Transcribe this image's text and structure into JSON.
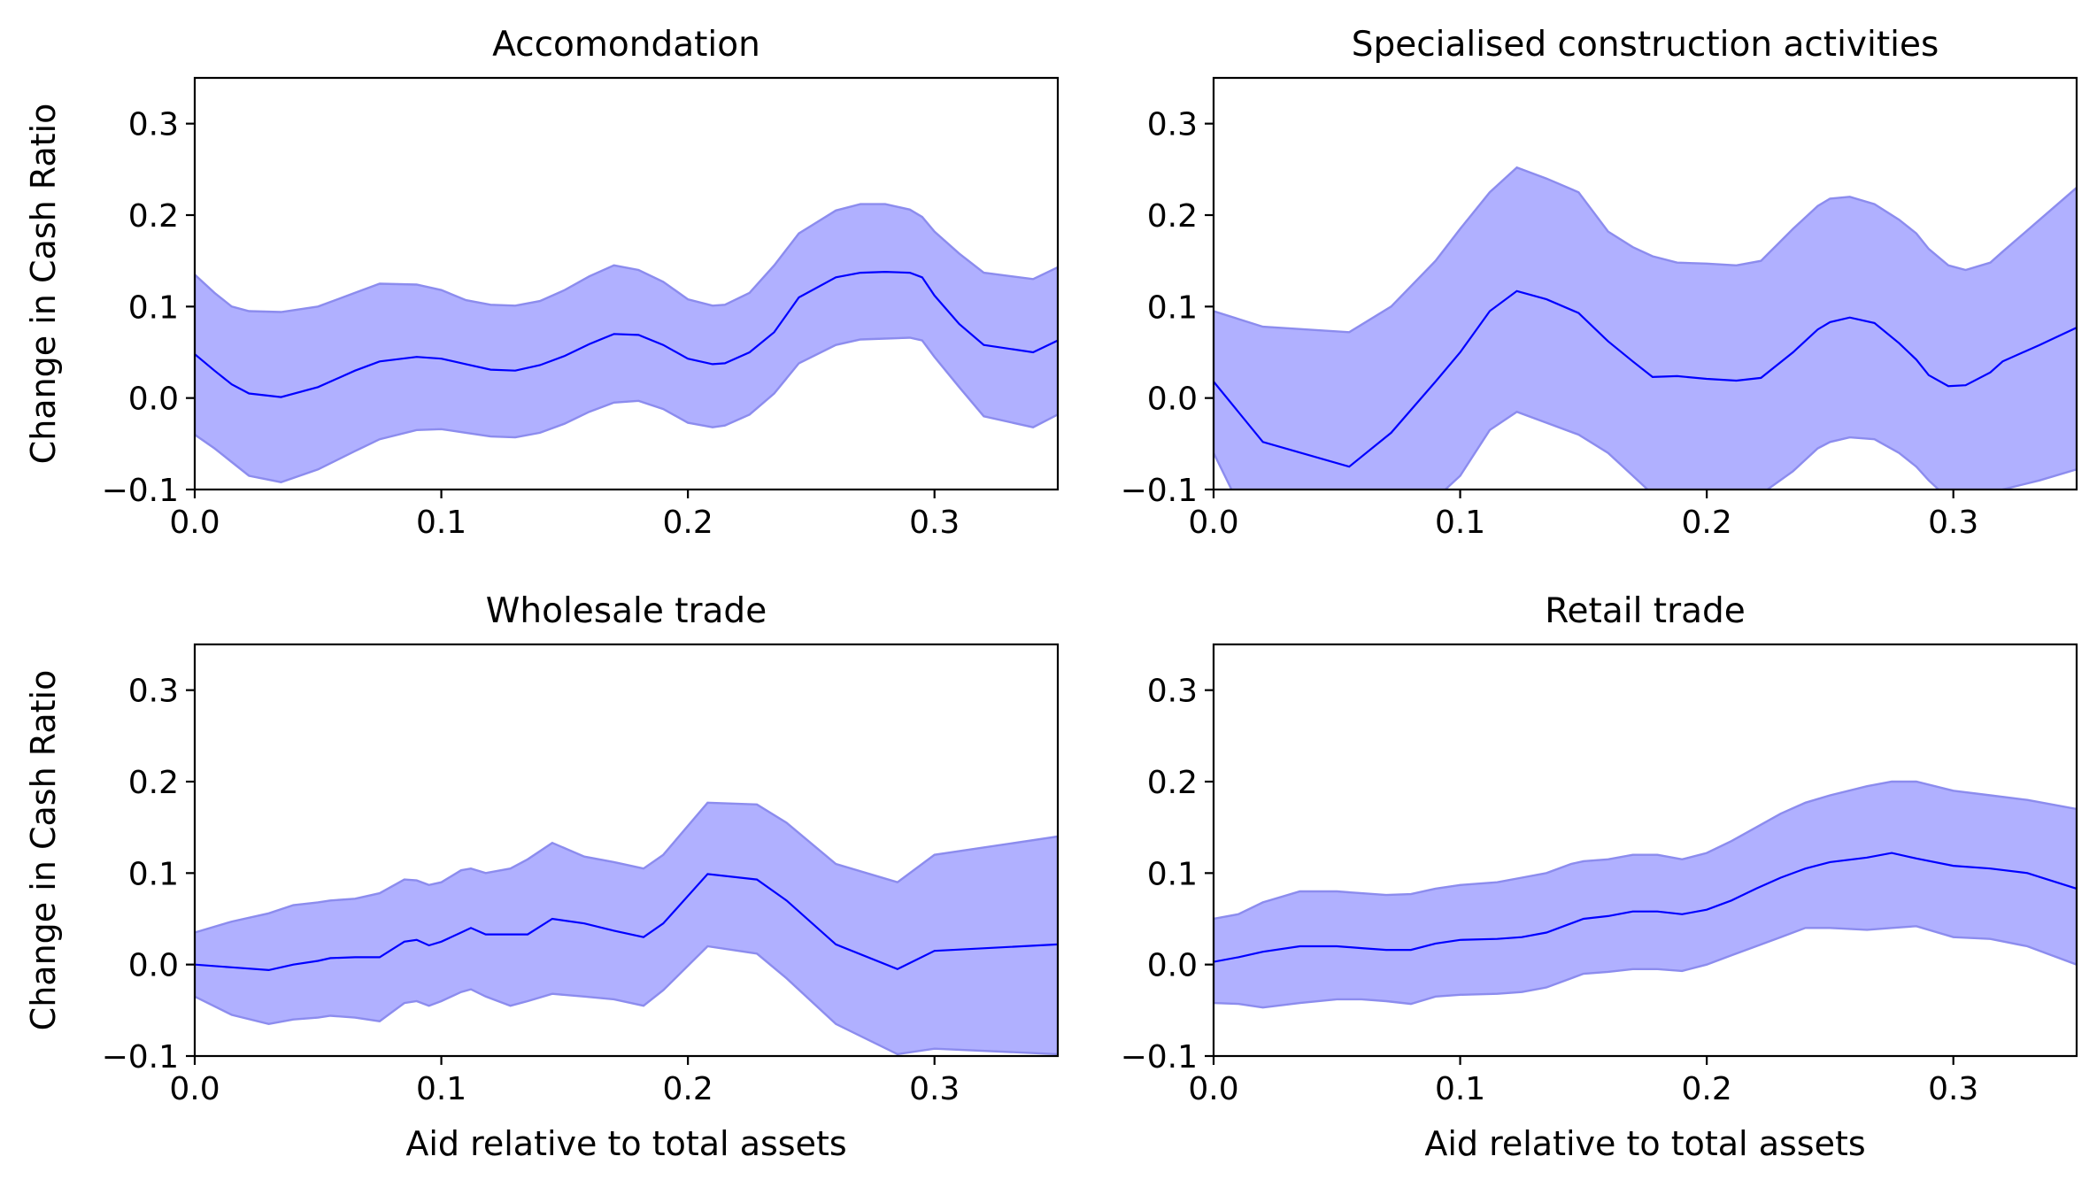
{
  "colors": {
    "line": "#0000ff",
    "band_fill": "#b0b0ff",
    "band_edge": "#8c8cee"
  },
  "chart_data": [
    {
      "type": "line",
      "title": "Accomondation",
      "xlabel": "",
      "ylabel": "Change in Cash Ratio",
      "xlim": [
        0.0,
        0.35
      ],
      "ylim": [
        -0.1,
        0.35
      ],
      "xticks": [
        "0.0",
        "0.1",
        "0.2",
        "0.3"
      ],
      "yticks": [
        "−0.1",
        "0.0",
        "0.1",
        "0.2",
        "0.3"
      ],
      "grid": false,
      "x": [
        0.0,
        0.008,
        0.015,
        0.022,
        0.035,
        0.05,
        0.065,
        0.075,
        0.09,
        0.1,
        0.11,
        0.12,
        0.13,
        0.14,
        0.15,
        0.16,
        0.17,
        0.18,
        0.19,
        0.2,
        0.21,
        0.215,
        0.225,
        0.235,
        0.245,
        0.26,
        0.27,
        0.28,
        0.29,
        0.295,
        0.3,
        0.31,
        0.32,
        0.34,
        0.35
      ],
      "y": [
        0.048,
        0.03,
        0.015,
        0.005,
        0.001,
        0.012,
        0.03,
        0.04,
        0.045,
        0.043,
        0.037,
        0.031,
        0.03,
        0.036,
        0.046,
        0.059,
        0.07,
        0.069,
        0.058,
        0.043,
        0.037,
        0.038,
        0.05,
        0.072,
        0.11,
        0.132,
        0.137,
        0.138,
        0.137,
        0.132,
        0.112,
        0.081,
        0.058,
        0.05,
        0.063
      ],
      "upper": [
        0.135,
        0.115,
        0.1,
        0.095,
        0.094,
        0.1,
        0.115,
        0.125,
        0.124,
        0.118,
        0.107,
        0.102,
        0.101,
        0.106,
        0.118,
        0.133,
        0.145,
        0.14,
        0.127,
        0.108,
        0.101,
        0.102,
        0.115,
        0.145,
        0.18,
        0.205,
        0.212,
        0.212,
        0.206,
        0.198,
        0.182,
        0.158,
        0.137,
        0.13,
        0.143
      ],
      "lower": [
        -0.04,
        -0.055,
        -0.07,
        -0.085,
        -0.092,
        -0.078,
        -0.058,
        -0.045,
        -0.035,
        -0.034,
        -0.038,
        -0.042,
        -0.043,
        -0.038,
        -0.028,
        -0.015,
        -0.005,
        -0.003,
        -0.012,
        -0.027,
        -0.032,
        -0.03,
        -0.018,
        0.005,
        0.038,
        0.058,
        0.064,
        0.065,
        0.066,
        0.063,
        0.045,
        0.012,
        -0.02,
        -0.032,
        -0.018
      ]
    },
    {
      "type": "line",
      "title": "Specialised construction activities",
      "xlabel": "",
      "ylabel": "",
      "xlim": [
        0.0,
        0.35
      ],
      "ylim": [
        -0.1,
        0.35
      ],
      "xticks": [
        "0.0",
        "0.1",
        "0.2",
        "0.3"
      ],
      "yticks": [
        "−0.1",
        "0.0",
        "0.1",
        "0.2",
        "0.3"
      ],
      "grid": false,
      "x": [
        0.0,
        0.02,
        0.055,
        0.072,
        0.09,
        0.1,
        0.112,
        0.123,
        0.135,
        0.148,
        0.16,
        0.17,
        0.178,
        0.188,
        0.2,
        0.212,
        0.222,
        0.235,
        0.245,
        0.25,
        0.258,
        0.268,
        0.278,
        0.285,
        0.29,
        0.298,
        0.305,
        0.315,
        0.32,
        0.335,
        0.35
      ],
      "y": [
        0.018,
        -0.048,
        -0.075,
        -0.038,
        0.018,
        0.05,
        0.095,
        0.117,
        0.108,
        0.093,
        0.062,
        0.04,
        0.023,
        0.024,
        0.021,
        0.019,
        0.022,
        0.05,
        0.075,
        0.083,
        0.088,
        0.082,
        0.06,
        0.042,
        0.025,
        0.013,
        0.014,
        0.028,
        0.04,
        0.058,
        0.077
      ],
      "upper": [
        0.095,
        0.078,
        0.072,
        0.1,
        0.15,
        0.185,
        0.225,
        0.252,
        0.24,
        0.225,
        0.182,
        0.165,
        0.155,
        0.148,
        0.147,
        0.145,
        0.15,
        0.185,
        0.21,
        0.218,
        0.22,
        0.212,
        0.195,
        0.18,
        0.163,
        0.145,
        0.14,
        0.148,
        0.16,
        0.195,
        0.23
      ],
      "lower": [
        -0.06,
        -0.17,
        -0.22,
        -0.17,
        -0.11,
        -0.085,
        -0.035,
        -0.015,
        -0.027,
        -0.04,
        -0.06,
        -0.085,
        -0.105,
        -0.11,
        -0.11,
        -0.11,
        -0.105,
        -0.08,
        -0.055,
        -0.048,
        -0.043,
        -0.045,
        -0.06,
        -0.075,
        -0.09,
        -0.11,
        -0.12,
        -0.11,
        -0.1,
        -0.09,
        -0.078
      ]
    },
    {
      "type": "line",
      "title": "Wholesale trade",
      "xlabel": "Aid relative to total assets",
      "ylabel": "Change in Cash Ratio",
      "xlim": [
        0.0,
        0.35
      ],
      "ylim": [
        -0.1,
        0.35
      ],
      "xticks": [
        "0.0",
        "0.1",
        "0.2",
        "0.3"
      ],
      "yticks": [
        "−0.1",
        "0.0",
        "0.1",
        "0.2",
        "0.3"
      ],
      "grid": false,
      "x": [
        0.0,
        0.015,
        0.03,
        0.04,
        0.05,
        0.055,
        0.065,
        0.075,
        0.085,
        0.09,
        0.095,
        0.1,
        0.108,
        0.112,
        0.118,
        0.128,
        0.135,
        0.145,
        0.158,
        0.17,
        0.182,
        0.19,
        0.208,
        0.228,
        0.24,
        0.26,
        0.285,
        0.3,
        0.35
      ],
      "y": [
        0.0,
        -0.003,
        -0.006,
        0.0,
        0.004,
        0.007,
        0.008,
        0.008,
        0.025,
        0.027,
        0.021,
        0.025,
        0.035,
        0.04,
        0.033,
        0.033,
        0.033,
        0.05,
        0.045,
        0.037,
        0.03,
        0.045,
        0.099,
        0.093,
        0.07,
        0.022,
        -0.005,
        0.015,
        0.022
      ],
      "upper": [
        0.035,
        0.047,
        0.056,
        0.065,
        0.068,
        0.07,
        0.072,
        0.078,
        0.093,
        0.092,
        0.087,
        0.09,
        0.103,
        0.105,
        0.1,
        0.105,
        0.115,
        0.133,
        0.118,
        0.112,
        0.105,
        0.12,
        0.177,
        0.175,
        0.155,
        0.11,
        0.09,
        0.12,
        0.14
      ],
      "lower": [
        -0.035,
        -0.055,
        -0.065,
        -0.06,
        -0.058,
        -0.056,
        -0.058,
        -0.062,
        -0.042,
        -0.04,
        -0.045,
        -0.04,
        -0.03,
        -0.027,
        -0.035,
        -0.045,
        -0.04,
        -0.032,
        -0.035,
        -0.038,
        -0.045,
        -0.028,
        0.02,
        0.012,
        -0.015,
        -0.065,
        -0.098,
        -0.092,
        -0.098
      ]
    },
    {
      "type": "line",
      "title": "Retail trade",
      "xlabel": "Aid relative to total assets",
      "ylabel": "",
      "xlim": [
        0.0,
        0.35
      ],
      "ylim": [
        -0.1,
        0.35
      ],
      "xticks": [
        "0.0",
        "0.1",
        "0.2",
        "0.3"
      ],
      "yticks": [
        "−0.1",
        "0.0",
        "0.1",
        "0.2",
        "0.3"
      ],
      "grid": false,
      "x": [
        0.0,
        0.01,
        0.02,
        0.035,
        0.05,
        0.06,
        0.07,
        0.08,
        0.09,
        0.1,
        0.115,
        0.125,
        0.135,
        0.145,
        0.15,
        0.16,
        0.17,
        0.18,
        0.19,
        0.2,
        0.21,
        0.22,
        0.23,
        0.24,
        0.25,
        0.265,
        0.275,
        0.285,
        0.3,
        0.315,
        0.33,
        0.35
      ],
      "y": [
        0.003,
        0.008,
        0.014,
        0.02,
        0.02,
        0.018,
        0.016,
        0.016,
        0.023,
        0.027,
        0.028,
        0.03,
        0.035,
        0.045,
        0.05,
        0.053,
        0.058,
        0.058,
        0.055,
        0.06,
        0.07,
        0.083,
        0.095,
        0.105,
        0.112,
        0.117,
        0.122,
        0.116,
        0.108,
        0.105,
        0.1,
        0.083
      ],
      "upper": [
        0.05,
        0.055,
        0.068,
        0.08,
        0.08,
        0.078,
        0.076,
        0.077,
        0.083,
        0.087,
        0.09,
        0.095,
        0.1,
        0.11,
        0.113,
        0.115,
        0.12,
        0.12,
        0.115,
        0.122,
        0.135,
        0.15,
        0.165,
        0.177,
        0.185,
        0.195,
        0.2,
        0.2,
        0.19,
        0.185,
        0.18,
        0.17
      ],
      "lower": [
        -0.042,
        -0.043,
        -0.047,
        -0.042,
        -0.038,
        -0.038,
        -0.04,
        -0.043,
        -0.035,
        -0.033,
        -0.032,
        -0.03,
        -0.025,
        -0.015,
        -0.01,
        -0.008,
        -0.005,
        -0.005,
        -0.007,
        0.0,
        0.01,
        0.02,
        0.03,
        0.04,
        0.04,
        0.038,
        0.04,
        0.042,
        0.03,
        0.028,
        0.02,
        0.0
      ]
    }
  ]
}
